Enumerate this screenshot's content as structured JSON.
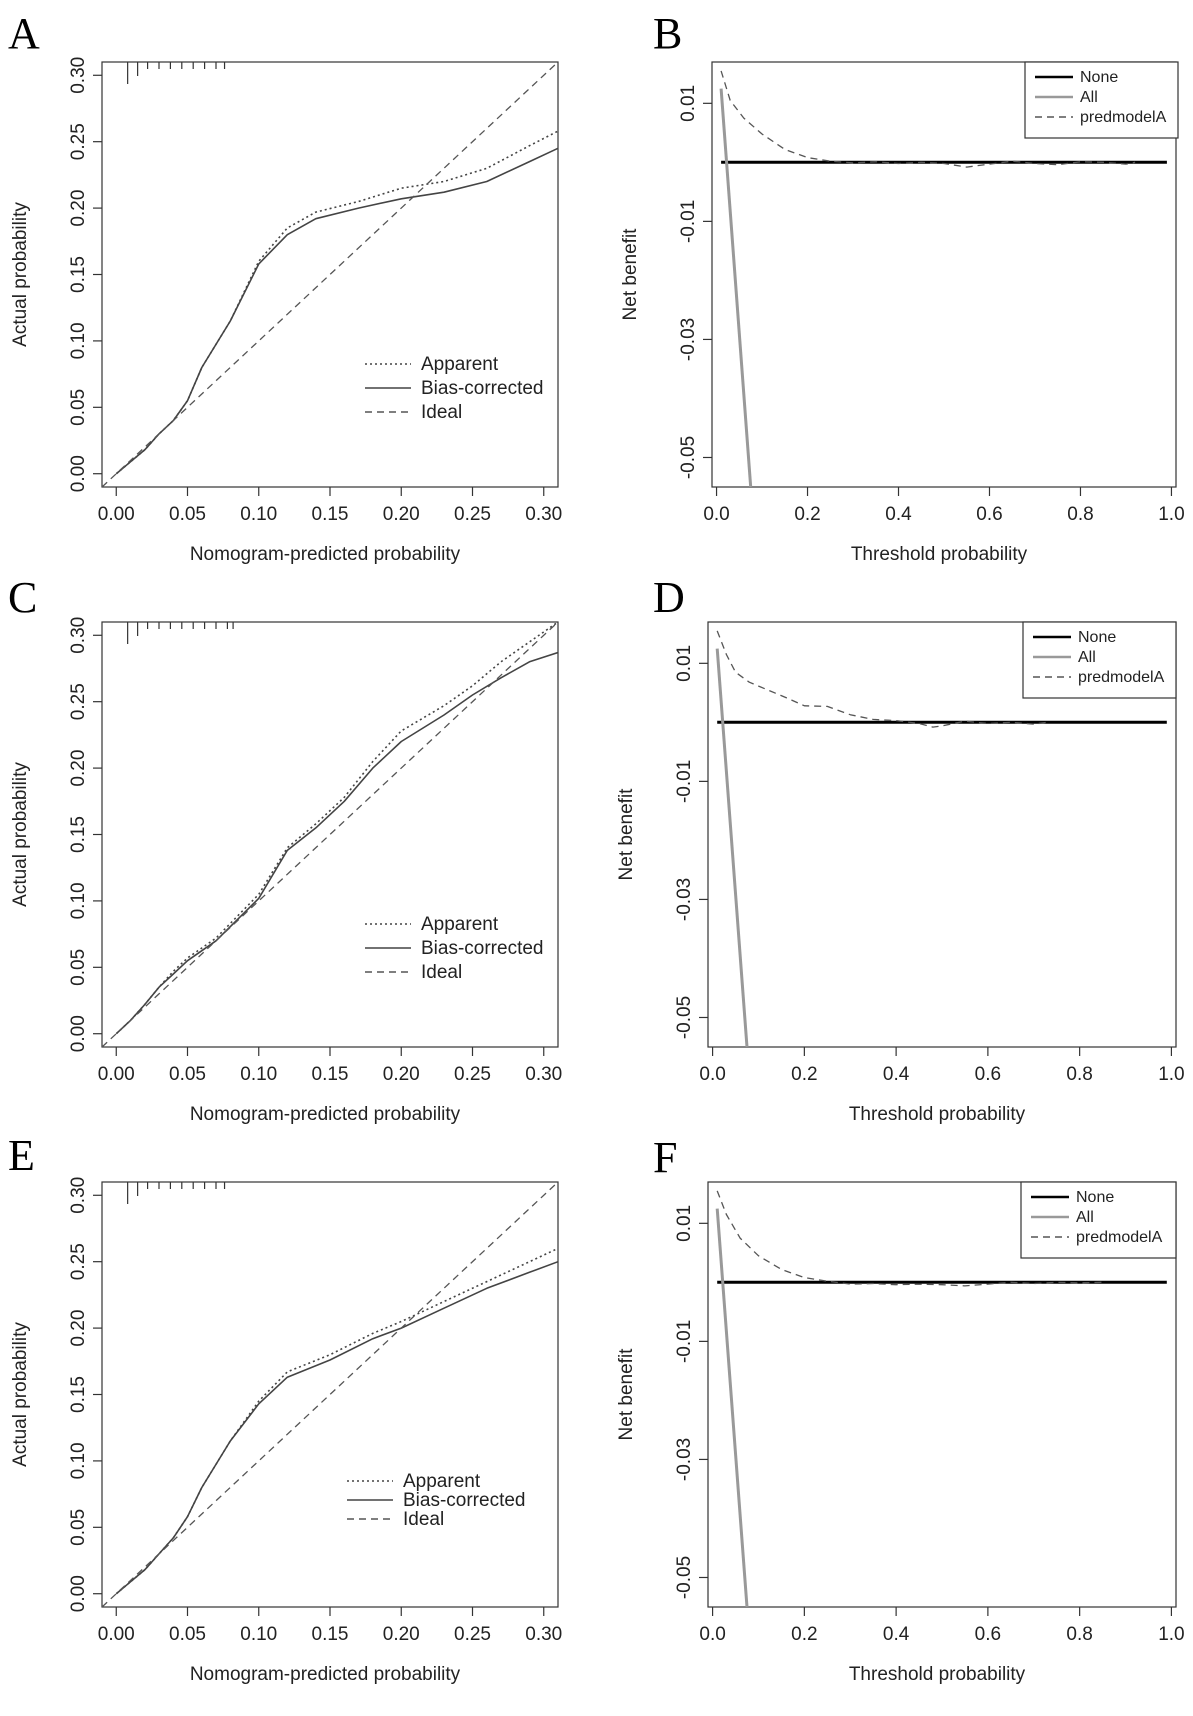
{
  "figure": {
    "panels": [
      "A",
      "B",
      "C",
      "D",
      "E",
      "F"
    ]
  },
  "chart_data": [
    {
      "panel": "A",
      "type": "line",
      "title": "",
      "xlabel": "Nomogram-predicted probability",
      "ylabel": "Actual probability",
      "xlim": [
        -0.01,
        0.31
      ],
      "ylim": [
        -0.01,
        0.31
      ],
      "xticks": [
        "0.00",
        "0.05",
        "0.10",
        "0.15",
        "0.20",
        "0.25",
        "0.30"
      ],
      "yticks": [
        "0.00",
        "0.05",
        "0.10",
        "0.15",
        "0.20",
        "0.25",
        "0.30"
      ],
      "legend": [
        "Apparent",
        "Bias-corrected",
        "Ideal"
      ],
      "rug": [
        0.008,
        0.015,
        0.022,
        0.03,
        0.038,
        0.046,
        0.054,
        0.062,
        0.07,
        0.076
      ],
      "series": [
        {
          "name": "Apparent",
          "style": "dotted",
          "x": [
            0.0,
            0.02,
            0.03,
            0.04,
            0.05,
            0.06,
            0.08,
            0.1,
            0.12,
            0.14,
            0.17,
            0.2,
            0.23,
            0.26,
            0.29,
            0.31
          ],
          "y": [
            0.0,
            0.018,
            0.03,
            0.04,
            0.055,
            0.08,
            0.115,
            0.16,
            0.185,
            0.197,
            0.205,
            0.215,
            0.22,
            0.23,
            0.247,
            0.258
          ]
        },
        {
          "name": "Bias-corrected",
          "style": "solid",
          "x": [
            0.0,
            0.02,
            0.03,
            0.04,
            0.05,
            0.06,
            0.08,
            0.1,
            0.12,
            0.14,
            0.17,
            0.2,
            0.23,
            0.26,
            0.29,
            0.31
          ],
          "y": [
            0.0,
            0.018,
            0.03,
            0.04,
            0.055,
            0.08,
            0.115,
            0.158,
            0.18,
            0.192,
            0.2,
            0.207,
            0.212,
            0.22,
            0.235,
            0.245
          ]
        },
        {
          "name": "Ideal",
          "style": "dashed",
          "x": [
            -0.01,
            0.31
          ],
          "y": [
            -0.01,
            0.31
          ]
        }
      ]
    },
    {
      "panel": "B",
      "type": "line",
      "title": "",
      "xlabel": "Threshold probability",
      "ylabel": "Net benefit",
      "xlim": [
        -0.01,
        1.01
      ],
      "ylim": [
        -0.055,
        0.017
      ],
      "xticks": [
        "0.0",
        "0.2",
        "0.4",
        "0.6",
        "0.8",
        "1.0"
      ],
      "yticks": [
        "-0.05",
        "-0.03",
        "-0.01",
        "0.01"
      ],
      "legend": [
        "None",
        "All",
        "predmodelA"
      ],
      "series": [
        {
          "name": "None",
          "style": "solid-black",
          "x": [
            0.01,
            0.99
          ],
          "y": [
            0.0,
            0.0
          ]
        },
        {
          "name": "All",
          "style": "solid-gray",
          "x": [
            0.01,
            0.075
          ],
          "y": [
            0.0125,
            -0.055
          ]
        },
        {
          "name": "predmodelA",
          "style": "dashed",
          "x": [
            0.01,
            0.03,
            0.06,
            0.1,
            0.15,
            0.2,
            0.25,
            0.3,
            0.35,
            0.4,
            0.45,
            0.5,
            0.55,
            0.6,
            0.65,
            0.7,
            0.75,
            0.8,
            0.85,
            0.9,
            0.92
          ],
          "y": [
            0.0155,
            0.0105,
            0.0075,
            0.0048,
            0.0022,
            0.0008,
            0.0002,
            -0.0001,
            0.0001,
            -0.0002,
            0.0,
            -0.0002,
            -0.0008,
            -0.0003,
            0.0002,
            -0.0002,
            -0.0004,
            0.0001,
            0.0,
            -0.0003,
            0.0
          ]
        }
      ]
    },
    {
      "panel": "C",
      "type": "line",
      "title": "",
      "xlabel": "Nomogram-predicted probability",
      "ylabel": "Actual probability",
      "xlim": [
        -0.01,
        0.31
      ],
      "ylim": [
        -0.01,
        0.31
      ],
      "xticks": [
        "0.00",
        "0.05",
        "0.10",
        "0.15",
        "0.20",
        "0.25",
        "0.30"
      ],
      "yticks": [
        "0.00",
        "0.05",
        "0.10",
        "0.15",
        "0.20",
        "0.25",
        "0.30"
      ],
      "legend": [
        "Apparent",
        "Bias-corrected",
        "Ideal"
      ],
      "rug": [
        0.008,
        0.015,
        0.022,
        0.03,
        0.038,
        0.046,
        0.054,
        0.062,
        0.07,
        0.078,
        0.082
      ],
      "series": [
        {
          "name": "Apparent",
          "style": "dotted",
          "x": [
            0.0,
            0.01,
            0.02,
            0.03,
            0.04,
            0.05,
            0.07,
            0.1,
            0.12,
            0.14,
            0.16,
            0.18,
            0.2,
            0.23,
            0.25,
            0.27,
            0.29,
            0.31
          ],
          "y": [
            0.0,
            0.01,
            0.022,
            0.035,
            0.047,
            0.057,
            0.072,
            0.105,
            0.14,
            0.158,
            0.178,
            0.205,
            0.228,
            0.247,
            0.262,
            0.28,
            0.295,
            0.31
          ]
        },
        {
          "name": "Bias-corrected",
          "style": "solid",
          "x": [
            0.0,
            0.01,
            0.02,
            0.03,
            0.04,
            0.05,
            0.07,
            0.1,
            0.12,
            0.14,
            0.16,
            0.18,
            0.2,
            0.23,
            0.25,
            0.27,
            0.29,
            0.31
          ],
          "y": [
            0.0,
            0.01,
            0.022,
            0.035,
            0.045,
            0.055,
            0.07,
            0.102,
            0.138,
            0.155,
            0.175,
            0.2,
            0.22,
            0.24,
            0.255,
            0.268,
            0.28,
            0.287
          ]
        },
        {
          "name": "Ideal",
          "style": "dashed",
          "x": [
            -0.01,
            0.31
          ],
          "y": [
            -0.01,
            0.31
          ]
        }
      ]
    },
    {
      "panel": "D",
      "type": "line",
      "title": "",
      "xlabel": "Threshold probability",
      "ylabel": "Net benefit",
      "xlim": [
        -0.01,
        1.01
      ],
      "ylim": [
        -0.055,
        0.017
      ],
      "xticks": [
        "0.0",
        "0.2",
        "0.4",
        "0.6",
        "0.8",
        "1.0"
      ],
      "yticks": [
        "-0.05",
        "-0.03",
        "-0.01",
        "0.01"
      ],
      "legend": [
        "None",
        "All",
        "predmodelA"
      ],
      "series": [
        {
          "name": "None",
          "style": "solid-black",
          "x": [
            0.01,
            0.99
          ],
          "y": [
            0.0,
            0.0
          ]
        },
        {
          "name": "All",
          "style": "solid-gray",
          "x": [
            0.01,
            0.075
          ],
          "y": [
            0.0125,
            -0.055
          ]
        },
        {
          "name": "predmodelA",
          "style": "dashed",
          "x": [
            0.01,
            0.03,
            0.05,
            0.08,
            0.12,
            0.16,
            0.2,
            0.25,
            0.3,
            0.35,
            0.4,
            0.45,
            0.48,
            0.5,
            0.55,
            0.6,
            0.65,
            0.7,
            0.73
          ],
          "y": [
            0.0155,
            0.0115,
            0.0085,
            0.0068,
            0.0055,
            0.0042,
            0.0028,
            0.0027,
            0.0013,
            0.0005,
            0.0003,
            -0.0002,
            -0.0008,
            -0.0006,
            0.0002,
            -0.0002,
            0.0,
            -0.0003,
            0.0
          ]
        }
      ]
    },
    {
      "panel": "E",
      "type": "line",
      "title": "",
      "xlabel": "Nomogram-predicted probability",
      "ylabel": "Actual probability",
      "xlim": [
        -0.01,
        0.31
      ],
      "ylim": [
        -0.01,
        0.31
      ],
      "xticks": [
        "0.00",
        "0.05",
        "0.10",
        "0.15",
        "0.20",
        "0.25",
        "0.30"
      ],
      "yticks": [
        "0.00",
        "0.05",
        "0.10",
        "0.15",
        "0.20",
        "0.25",
        "0.30"
      ],
      "legend": [
        "Apparent",
        "Bias-corrected",
        "Ideal"
      ],
      "rug": [
        0.008,
        0.015,
        0.022,
        0.03,
        0.038,
        0.046,
        0.054,
        0.062,
        0.07,
        0.076
      ],
      "series": [
        {
          "name": "Apparent",
          "style": "dotted",
          "x": [
            0.0,
            0.02,
            0.03,
            0.04,
            0.05,
            0.06,
            0.08,
            0.1,
            0.12,
            0.15,
            0.18,
            0.2,
            0.23,
            0.26,
            0.29,
            0.31
          ],
          "y": [
            0.0,
            0.018,
            0.03,
            0.042,
            0.058,
            0.08,
            0.115,
            0.145,
            0.167,
            0.18,
            0.196,
            0.205,
            0.22,
            0.235,
            0.25,
            0.26
          ]
        },
        {
          "name": "Bias-corrected",
          "style": "solid",
          "x": [
            0.0,
            0.02,
            0.03,
            0.04,
            0.05,
            0.06,
            0.08,
            0.1,
            0.12,
            0.15,
            0.18,
            0.2,
            0.23,
            0.26,
            0.29,
            0.31
          ],
          "y": [
            0.0,
            0.018,
            0.03,
            0.042,
            0.058,
            0.08,
            0.115,
            0.143,
            0.163,
            0.176,
            0.192,
            0.2,
            0.215,
            0.23,
            0.242,
            0.25
          ]
        },
        {
          "name": "Ideal",
          "style": "dashed",
          "x": [
            -0.01,
            0.31
          ],
          "y": [
            -0.01,
            0.31
          ]
        }
      ]
    },
    {
      "panel": "F",
      "type": "line",
      "title": "",
      "xlabel": "Threshold probability",
      "ylabel": "Net benefit",
      "xlim": [
        -0.01,
        1.01
      ],
      "ylim": [
        -0.055,
        0.017
      ],
      "xticks": [
        "0.0",
        "0.2",
        "0.4",
        "0.6",
        "0.8",
        "1.0"
      ],
      "yticks": [
        "-0.05",
        "-0.03",
        "-0.01",
        "0.01"
      ],
      "legend": [
        "None",
        "All",
        "predmodelA"
      ],
      "series": [
        {
          "name": "None",
          "style": "solid-black",
          "x": [
            0.01,
            0.99
          ],
          "y": [
            0.0,
            0.0
          ]
        },
        {
          "name": "All",
          "style": "solid-gray",
          "x": [
            0.01,
            0.075
          ],
          "y": [
            0.0125,
            -0.055
          ]
        },
        {
          "name": "predmodelA",
          "style": "dashed",
          "x": [
            0.01,
            0.03,
            0.06,
            0.1,
            0.15,
            0.2,
            0.25,
            0.3,
            0.35,
            0.4,
            0.45,
            0.5,
            0.55,
            0.6,
            0.65,
            0.7,
            0.75,
            0.8,
            0.85
          ],
          "y": [
            0.0155,
            0.0115,
            0.0075,
            0.0045,
            0.0022,
            0.0008,
            0.0002,
            -0.0003,
            -0.0002,
            -0.0004,
            -0.0003,
            -0.0004,
            -0.0006,
            -0.0003,
            0.0,
            -0.0002,
            0.0,
            -0.0001,
            0.0
          ]
        }
      ]
    }
  ]
}
